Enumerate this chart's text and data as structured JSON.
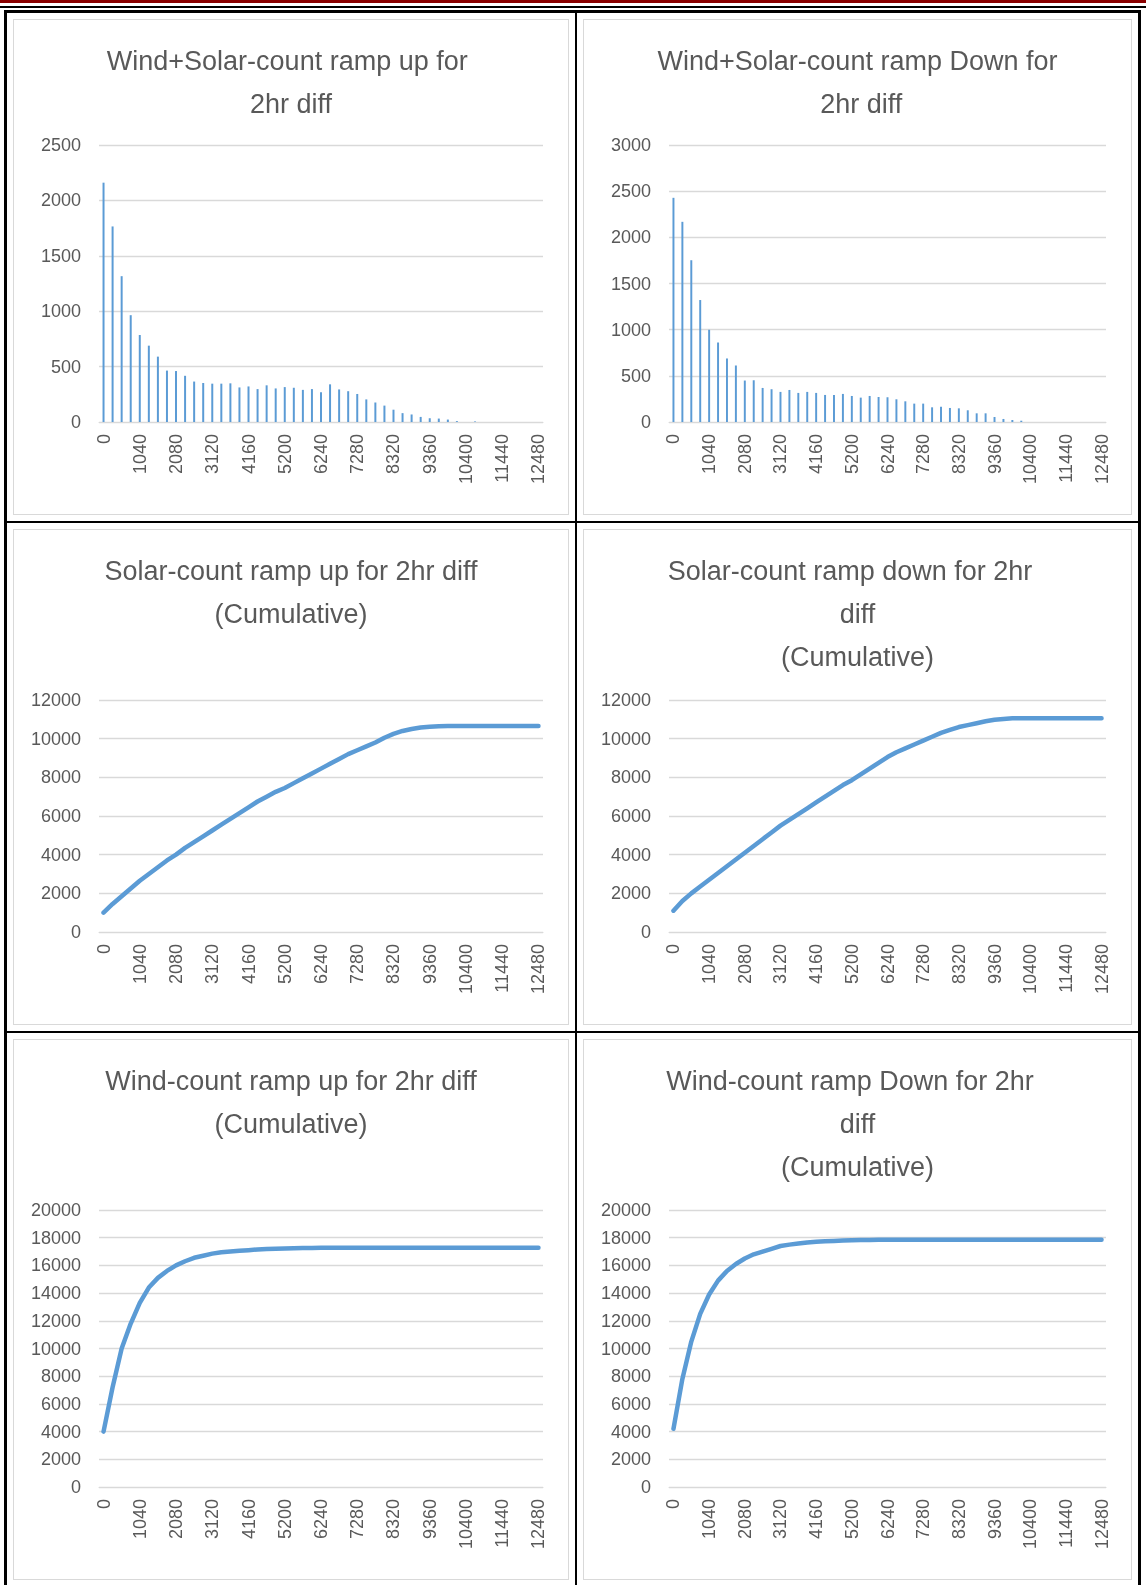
{
  "chart_data": [
    {
      "type": "bar",
      "title": "Wind+Solar-count ramp up for 2hr diff",
      "color": "#5b9bd5",
      "grid": "y",
      "ylim": [
        0,
        2500
      ],
      "yticks": [
        0,
        500,
        1000,
        1500,
        2000,
        2500
      ],
      "categories": [
        "0",
        null,
        null,
        null,
        "1040",
        null,
        null,
        null,
        "2080",
        null,
        null,
        null,
        "3120",
        null,
        null,
        null,
        "4160",
        null,
        null,
        null,
        "5200",
        null,
        null,
        null,
        "6240",
        null,
        null,
        null,
        "7280",
        null,
        null,
        null,
        "8320",
        null,
        null,
        null,
        "9360",
        null,
        null,
        null,
        "10400",
        null,
        null,
        null,
        "11440",
        null,
        null,
        null,
        "12480"
      ],
      "values": [
        2160,
        1765,
        1316,
        964,
        785,
        689,
        590,
        464,
        460,
        417,
        365,
        352,
        346,
        346,
        349,
        312,
        321,
        297,
        331,
        303,
        315,
        309,
        290,
        297,
        269,
        340,
        294,
        278,
        253,
        204,
        176,
        148,
        111,
        80,
        68,
        46,
        34,
        31,
        22,
        8,
        0,
        5,
        0,
        0,
        0,
        0,
        0,
        0,
        0
      ]
    },
    {
      "type": "bar",
      "title": "Wind+Solar-count ramp Down for 2hr diff",
      "color": "#5b9bd5",
      "grid": "y",
      "ylim": [
        0,
        3000
      ],
      "yticks": [
        0,
        500,
        1000,
        1500,
        2000,
        2500,
        3000
      ],
      "categories": [
        "0",
        null,
        null,
        null,
        "1040",
        null,
        null,
        null,
        "2080",
        null,
        null,
        null,
        "3120",
        null,
        null,
        null,
        "4160",
        null,
        null,
        null,
        "5200",
        null,
        null,
        null,
        "6240",
        null,
        null,
        null,
        "7280",
        null,
        null,
        null,
        "8320",
        null,
        null,
        null,
        "9360",
        null,
        null,
        null,
        "10400",
        null,
        null,
        null,
        "11440",
        null,
        null,
        null,
        "12480"
      ],
      "values": [
        2428,
        2168,
        1752,
        1321,
        999,
        861,
        688,
        612,
        449,
        452,
        369,
        355,
        326,
        347,
        315,
        326,
        315,
        293,
        293,
        304,
        282,
        264,
        282,
        271,
        268,
        246,
        224,
        199,
        199,
        159,
        166,
        152,
        148,
        127,
        94,
        94,
        54,
        33,
        22,
        14,
        0,
        0,
        0,
        0,
        0,
        0,
        0,
        0,
        0
      ]
    },
    {
      "type": "line",
      "title": "Solar-count ramp up for 2hr diff\n(Cumulative)",
      "color": "#5b9bd5",
      "grid": "y",
      "marker": "none",
      "ylim": [
        0,
        12000
      ],
      "yticks": [
        0,
        2000,
        4000,
        6000,
        8000,
        10000,
        12000
      ],
      "categories": [
        "0",
        null,
        null,
        null,
        "1040",
        null,
        null,
        null,
        "2080",
        null,
        null,
        null,
        "3120",
        null,
        null,
        null,
        "4160",
        null,
        null,
        null,
        "5200",
        null,
        null,
        null,
        "6240",
        null,
        null,
        null,
        "7280",
        null,
        null,
        null,
        "8320",
        null,
        null,
        null,
        "9360",
        null,
        null,
        null,
        "10400",
        null,
        null,
        null,
        "11440",
        null,
        null,
        null,
        "12480"
      ],
      "values": [
        1000,
        1450,
        1850,
        2250,
        2650,
        3000,
        3350,
        3700,
        4000,
        4350,
        4650,
        4950,
        5250,
        5550,
        5850,
        6150,
        6450,
        6750,
        7000,
        7250,
        7450,
        7700,
        7950,
        8200,
        8450,
        8700,
        8950,
        9200,
        9400,
        9600,
        9800,
        10050,
        10250,
        10400,
        10500,
        10580,
        10620,
        10640,
        10650,
        10650,
        10650,
        10650,
        10650,
        10650,
        10650,
        10650,
        10650,
        10650,
        10650
      ]
    },
    {
      "type": "line",
      "title": "Solar-count ramp down for 2hr  diff\n(Cumulative)",
      "color": "#5b9bd5",
      "grid": "y",
      "marker": "none",
      "ylim": [
        0,
        12000
      ],
      "yticks": [
        0,
        2000,
        4000,
        6000,
        8000,
        10000,
        12000
      ],
      "categories": [
        "0",
        null,
        null,
        null,
        "1040",
        null,
        null,
        null,
        "2080",
        null,
        null,
        null,
        "3120",
        null,
        null,
        null,
        "4160",
        null,
        null,
        null,
        "5200",
        null,
        null,
        null,
        "6240",
        null,
        null,
        null,
        "7280",
        null,
        null,
        null,
        "8320",
        null,
        null,
        null,
        "9360",
        null,
        null,
        null,
        "10400",
        null,
        null,
        null,
        "11440",
        null,
        null,
        null,
        "12480"
      ],
      "values": [
        1100,
        1600,
        2000,
        2350,
        2700,
        3050,
        3400,
        3750,
        4100,
        4450,
        4800,
        5150,
        5500,
        5800,
        6100,
        6400,
        6700,
        7000,
        7300,
        7600,
        7850,
        8150,
        8450,
        8750,
        9050,
        9300,
        9500,
        9700,
        9900,
        10100,
        10300,
        10450,
        10600,
        10700,
        10800,
        10900,
        10980,
        11020,
        11050,
        11050,
        11050,
        11050,
        11050,
        11050,
        11050,
        11050,
        11050,
        11050,
        11050
      ]
    },
    {
      "type": "line",
      "title": "Wind-count ramp up for 2hr diff\n(Cumulative)",
      "color": "#5b9bd5",
      "grid": "y",
      "marker": "none",
      "ylim": [
        0,
        20000
      ],
      "yticks": [
        0,
        2000,
        4000,
        6000,
        8000,
        10000,
        12000,
        14000,
        16000,
        18000,
        20000
      ],
      "categories": [
        "0",
        null,
        null,
        null,
        "1040",
        null,
        null,
        null,
        "2080",
        null,
        null,
        null,
        "3120",
        null,
        null,
        null,
        "4160",
        null,
        null,
        null,
        "5200",
        null,
        null,
        null,
        "6240",
        null,
        null,
        null,
        "7280",
        null,
        null,
        null,
        "8320",
        null,
        null,
        null,
        "9360",
        null,
        null,
        null,
        "10400",
        null,
        null,
        null,
        "11440",
        null,
        null,
        null,
        "12480"
      ],
      "values": [
        4000,
        7200,
        10000,
        11800,
        13300,
        14400,
        15100,
        15600,
        16000,
        16300,
        16550,
        16700,
        16850,
        16950,
        17000,
        17050,
        17100,
        17150,
        17180,
        17200,
        17220,
        17240,
        17250,
        17260,
        17270,
        17280,
        17280,
        17280,
        17280,
        17280,
        17280,
        17280,
        17280,
        17280,
        17280,
        17280,
        17280,
        17280,
        17280,
        17280,
        17280,
        17280,
        17280,
        17280,
        17280,
        17280,
        17280,
        17280,
        17280
      ]
    },
    {
      "type": "line",
      "title": "Wind-count ramp Down for 2hr  diff\n(Cumulative)",
      "color": "#5b9bd5",
      "grid": "y",
      "marker": "none",
      "ylim": [
        0,
        20000
      ],
      "yticks": [
        0,
        2000,
        4000,
        6000,
        8000,
        10000,
        12000,
        14000,
        16000,
        18000,
        20000
      ],
      "categories": [
        "0",
        null,
        null,
        null,
        "1040",
        null,
        null,
        null,
        "2080",
        null,
        null,
        null,
        "3120",
        null,
        null,
        null,
        "4160",
        null,
        null,
        null,
        "5200",
        null,
        null,
        null,
        "6240",
        null,
        null,
        null,
        "7280",
        null,
        null,
        null,
        "8320",
        null,
        null,
        null,
        "9360",
        null,
        null,
        null,
        "10400",
        null,
        null,
        null,
        "11440",
        null,
        null,
        null,
        "12480"
      ],
      "values": [
        4200,
        7800,
        10500,
        12500,
        13900,
        14900,
        15600,
        16100,
        16500,
        16800,
        17000,
        17200,
        17400,
        17500,
        17580,
        17650,
        17700,
        17740,
        17770,
        17800,
        17820,
        17830,
        17840,
        17850,
        17860,
        17860,
        17860,
        17860,
        17860,
        17860,
        17860,
        17860,
        17860,
        17860,
        17860,
        17860,
        17860,
        17860,
        17860,
        17860,
        17860,
        17860,
        17860,
        17860,
        17860,
        17860,
        17860,
        17860,
        17860
      ]
    }
  ]
}
